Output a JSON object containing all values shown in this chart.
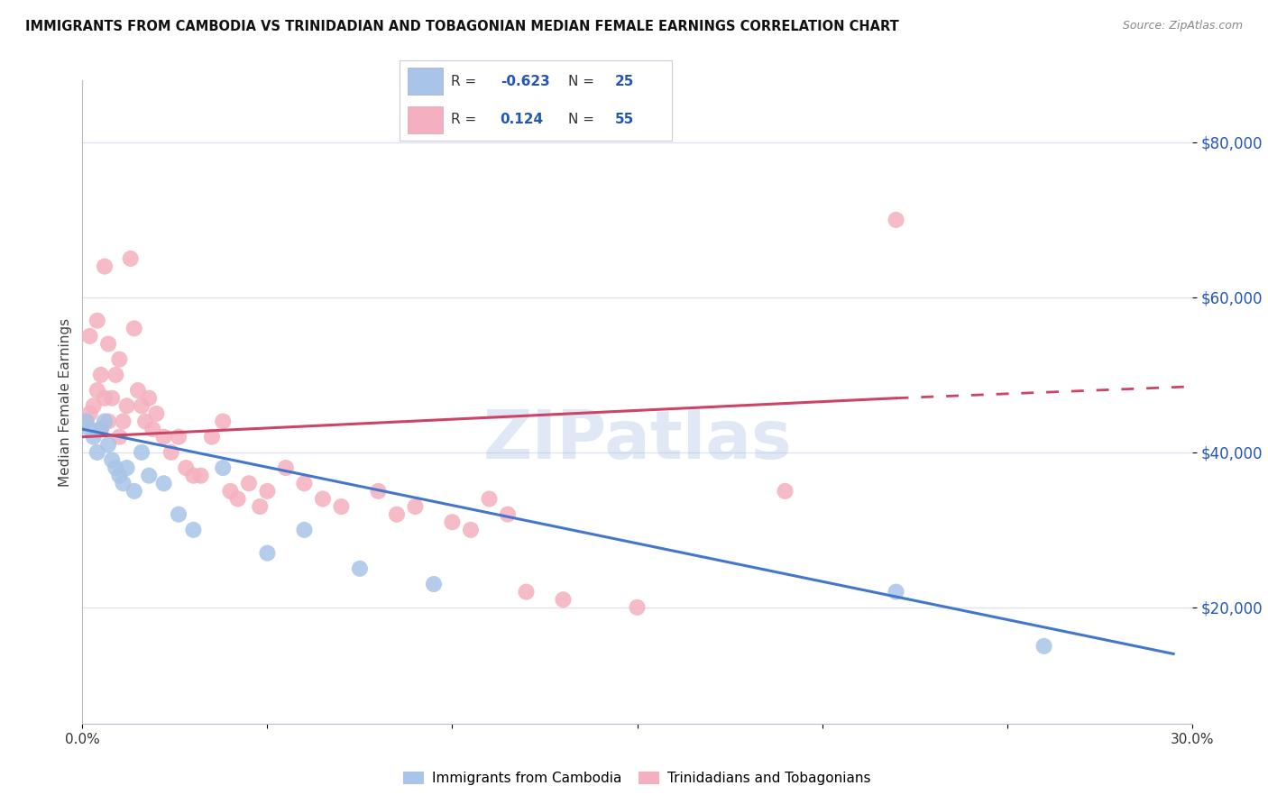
{
  "title": "IMMIGRANTS FROM CAMBODIA VS TRINIDADIAN AND TOBAGONIAN MEDIAN FEMALE EARNINGS CORRELATION CHART",
  "source": "Source: ZipAtlas.com",
  "ylabel": "Median Female Earnings",
  "ytick_labels": [
    "$20,000",
    "$40,000",
    "$60,000",
    "$80,000"
  ],
  "ytick_values": [
    20000,
    40000,
    60000,
    80000
  ],
  "ylim": [
    5000,
    88000
  ],
  "xlim": [
    0.0,
    0.3
  ],
  "legend_r_blue": "-0.623",
  "legend_n_blue": "25",
  "legend_r_pink": "0.124",
  "legend_n_pink": "55",
  "legend_label_blue": "Immigrants from Cambodia",
  "legend_label_pink": "Trinidadians and Tobagonians",
  "blue_color": "#a8c4e8",
  "pink_color": "#f4b0be",
  "blue_line_color": "#4477cc",
  "pink_line_color": "#cc4466",
  "watermark": "ZIPatlas",
  "blue_x": [
    0.001,
    0.002,
    0.003,
    0.004,
    0.005,
    0.006,
    0.007,
    0.008,
    0.009,
    0.01,
    0.011,
    0.012,
    0.014,
    0.016,
    0.018,
    0.022,
    0.026,
    0.03,
    0.038,
    0.05,
    0.06,
    0.075,
    0.095,
    0.22,
    0.26
  ],
  "blue_y": [
    44000,
    43000,
    42000,
    40000,
    43000,
    44000,
    41000,
    39000,
    38000,
    37000,
    36000,
    38000,
    35000,
    40000,
    37000,
    36000,
    32000,
    30000,
    38000,
    27000,
    30000,
    25000,
    23000,
    22000,
    15000
  ],
  "pink_x": [
    0.001,
    0.002,
    0.002,
    0.003,
    0.004,
    0.004,
    0.005,
    0.005,
    0.006,
    0.006,
    0.007,
    0.007,
    0.008,
    0.009,
    0.01,
    0.01,
    0.011,
    0.012,
    0.013,
    0.014,
    0.015,
    0.016,
    0.017,
    0.018,
    0.019,
    0.02,
    0.022,
    0.024,
    0.026,
    0.028,
    0.03,
    0.032,
    0.035,
    0.038,
    0.04,
    0.042,
    0.045,
    0.048,
    0.05,
    0.055,
    0.06,
    0.065,
    0.07,
    0.08,
    0.085,
    0.09,
    0.1,
    0.105,
    0.11,
    0.115,
    0.12,
    0.13,
    0.15,
    0.19,
    0.22
  ],
  "pink_y": [
    44000,
    45000,
    55000,
    46000,
    48000,
    57000,
    43000,
    50000,
    47000,
    64000,
    44000,
    54000,
    47000,
    50000,
    42000,
    52000,
    44000,
    46000,
    65000,
    56000,
    48000,
    46000,
    44000,
    47000,
    43000,
    45000,
    42000,
    40000,
    42000,
    38000,
    37000,
    37000,
    42000,
    44000,
    35000,
    34000,
    36000,
    33000,
    35000,
    38000,
    36000,
    34000,
    33000,
    35000,
    32000,
    33000,
    31000,
    30000,
    34000,
    32000,
    22000,
    21000,
    20000,
    35000,
    70000
  ],
  "blue_line_x0": 0.0,
  "blue_line_y0": 43000,
  "blue_line_x1": 0.295,
  "blue_line_y1": 14000,
  "pink_line_x0": 0.0,
  "pink_line_y0": 42000,
  "pink_line_x1_solid": 0.22,
  "pink_line_y1_solid": 47000,
  "pink_line_x1_dash": 0.3,
  "pink_line_y1_dash": 48500
}
